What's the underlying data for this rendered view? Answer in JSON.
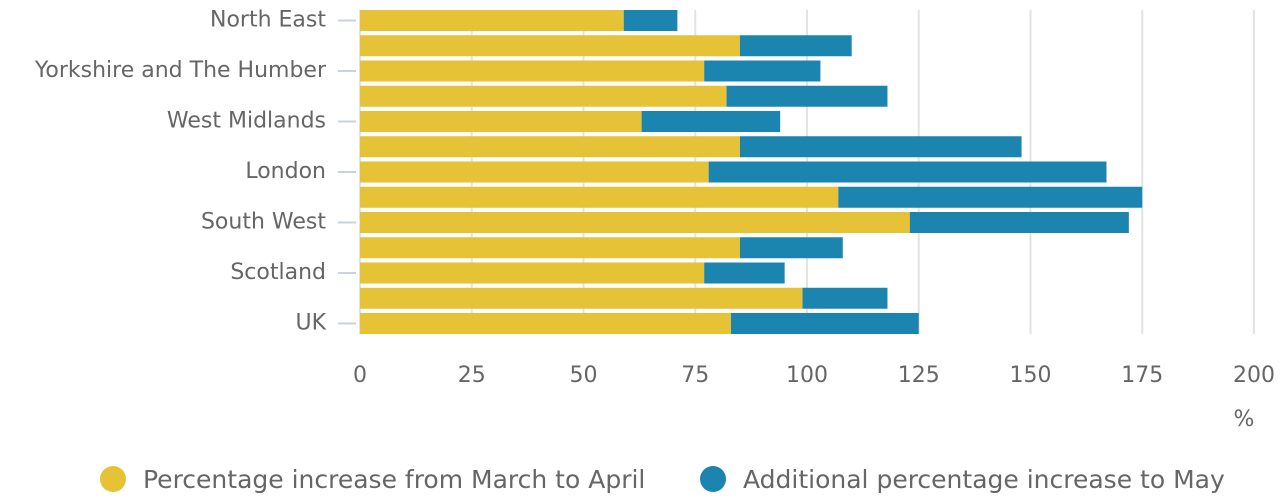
{
  "chart_data": {
    "type": "bar",
    "orientation": "horizontal",
    "stacked": true,
    "categories": [
      "North East",
      null,
      "Yorkshire and The Humber",
      null,
      "West Midlands",
      null,
      "London",
      null,
      "South West",
      null,
      "Scotland",
      null,
      "UK"
    ],
    "series": [
      {
        "name": "Percentage increase from March to April",
        "color": "#e5c236",
        "values": [
          59,
          85,
          77,
          82,
          63,
          85,
          78,
          107,
          123,
          85,
          77,
          99,
          83
        ]
      },
      {
        "name": "Additional percentage increase to May",
        "color": "#1b85b0",
        "values": [
          12,
          25,
          26,
          36,
          31,
          63,
          89,
          68,
          49,
          23,
          18,
          19,
          42
        ]
      }
    ],
    "xlim": [
      0,
      200
    ],
    "xticks": [
      0,
      25,
      50,
      75,
      100,
      125,
      150,
      175,
      200
    ],
    "x_label": "%",
    "grid": true,
    "legend": "bottom"
  }
}
